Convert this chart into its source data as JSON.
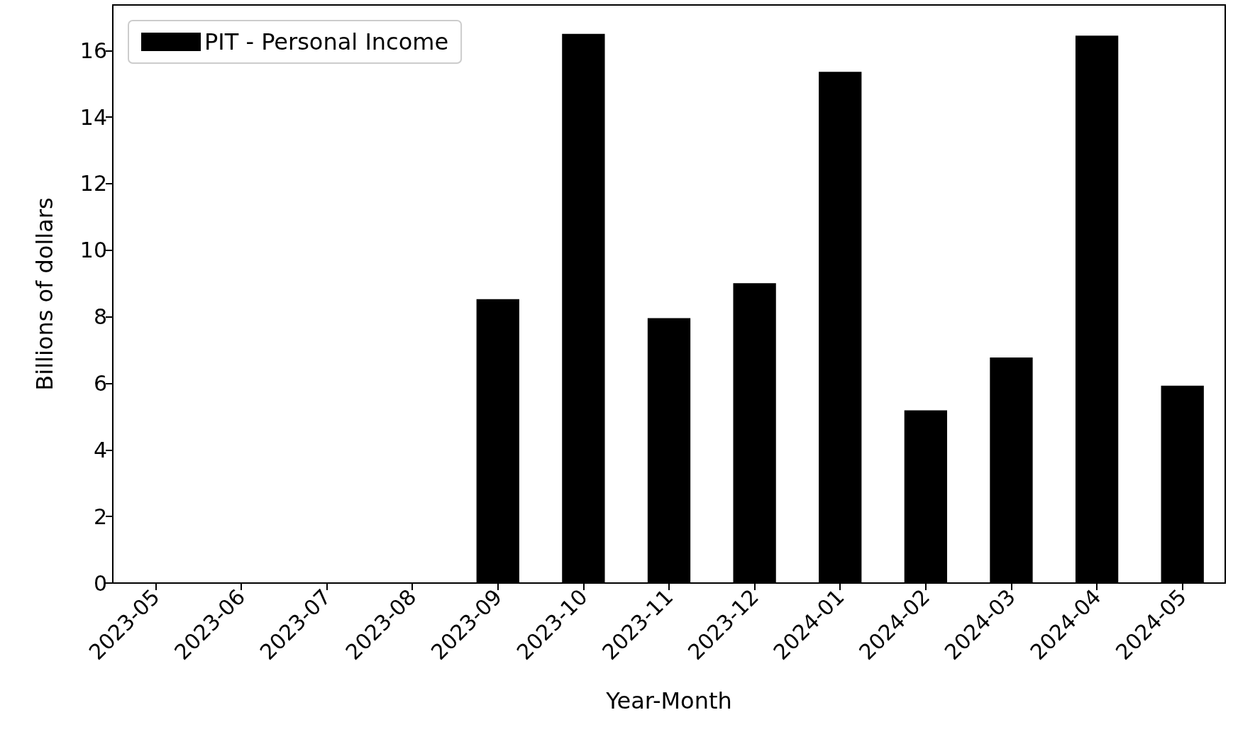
{
  "chart_data": {
    "type": "bar",
    "xlabel": "Year-Month",
    "ylabel": "Billions of dollars",
    "categories": [
      "2023-05",
      "2023-06",
      "2023-07",
      "2023-08",
      "2023-09",
      "2023-10",
      "2023-11",
      "2023-12",
      "2024-01",
      "2024-02",
      "2024-03",
      "2024-04",
      "2024-05"
    ],
    "series": [
      {
        "name": "PIT - Personal Income",
        "color": "#000000",
        "values": [
          0,
          0,
          0,
          0,
          8.53,
          16.5,
          7.96,
          9.01,
          15.36,
          5.19,
          6.78,
          16.45,
          5.93
        ]
      }
    ],
    "ylim": [
      0,
      17.37
    ],
    "yticks": [
      0,
      2,
      4,
      6,
      8,
      10,
      12,
      14,
      16
    ],
    "grid": false,
    "legend": "top left"
  }
}
